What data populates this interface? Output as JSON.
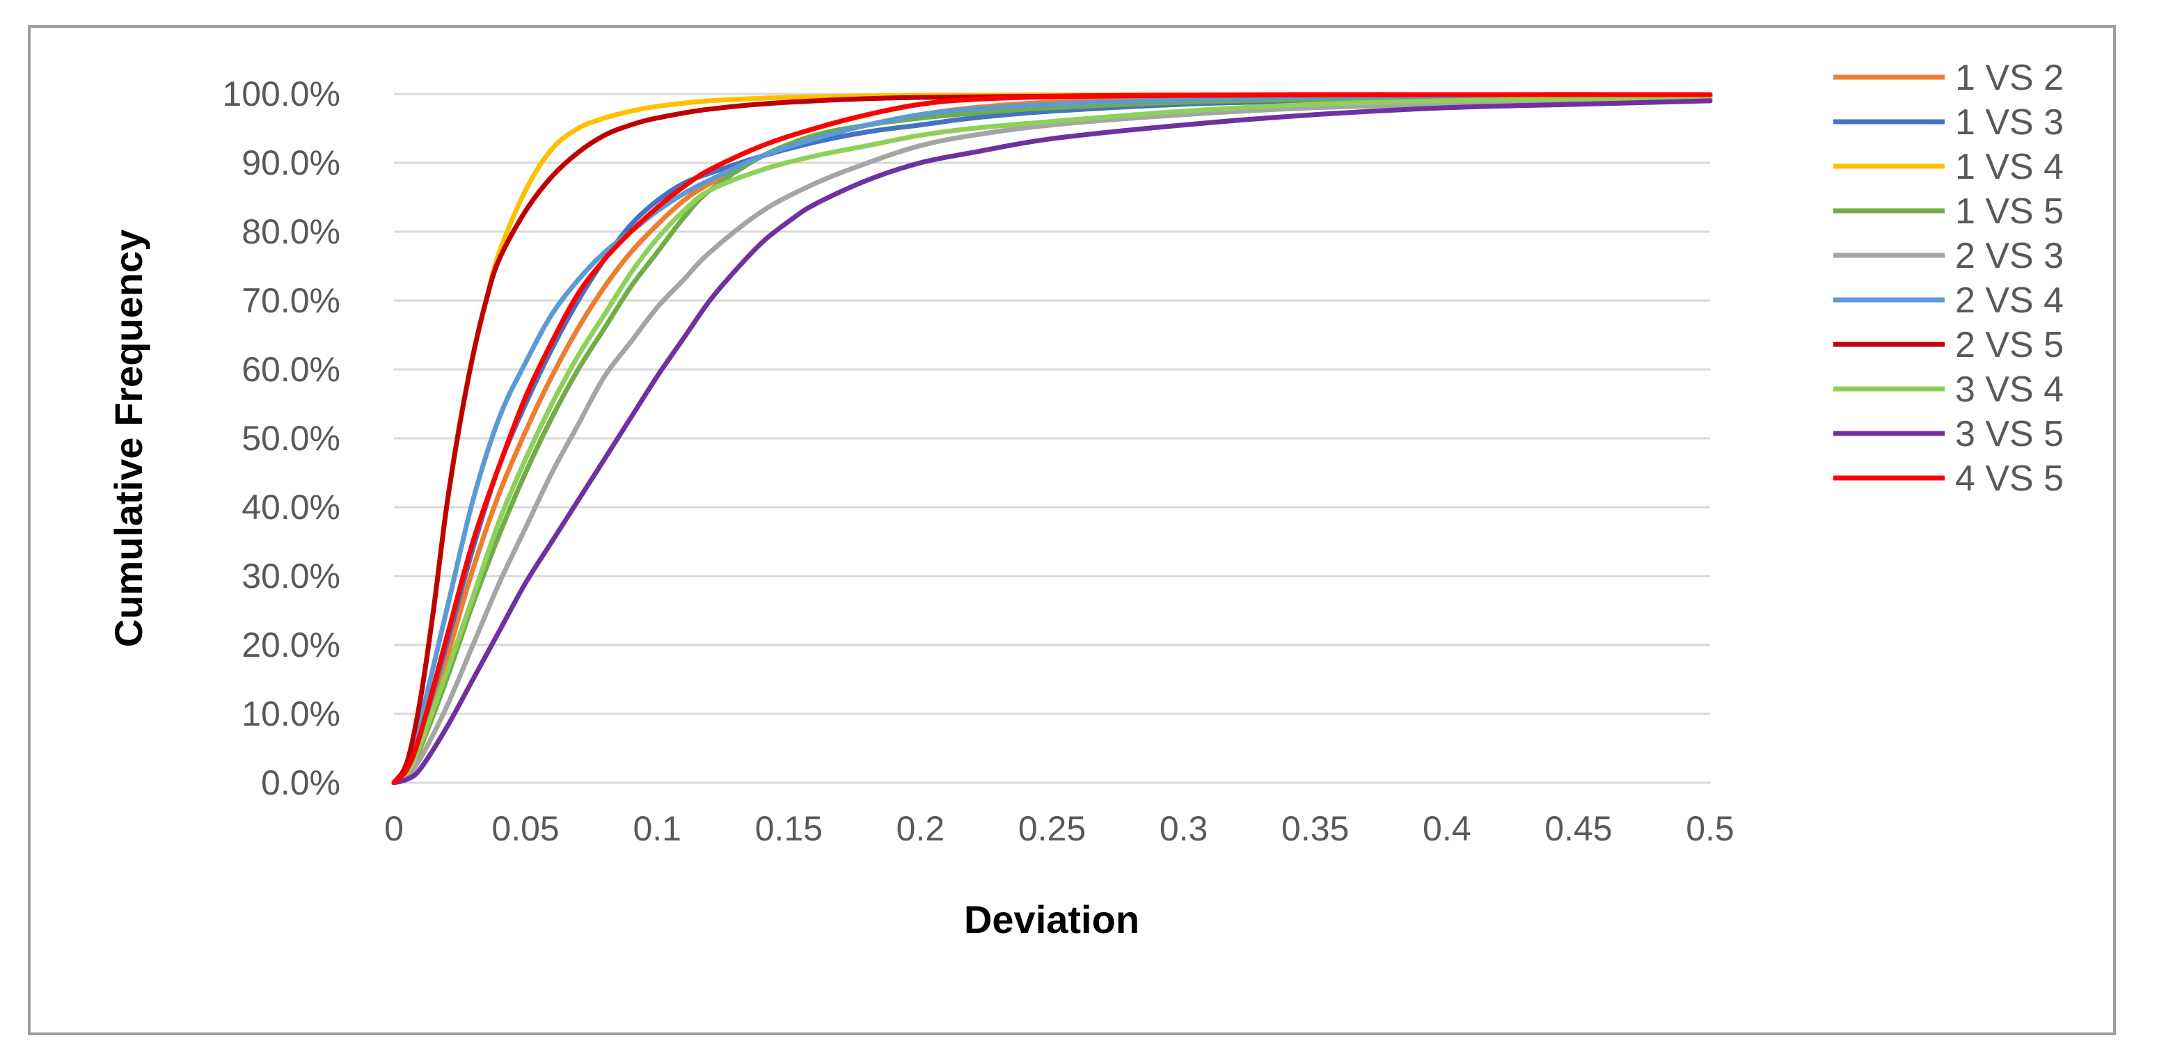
{
  "chart_data": {
    "type": "line",
    "title": "",
    "xlabel": "Deviation",
    "ylabel": "Cumulative Frequency",
    "xlim": [
      0,
      0.5
    ],
    "ylim": [
      0,
      1
    ],
    "x_ticks": [
      0,
      0.05,
      0.1,
      0.15,
      0.2,
      0.25,
      0.3,
      0.35,
      0.4,
      0.45,
      0.5
    ],
    "x_tick_labels": [
      "0",
      "0.05",
      "0.1",
      "0.15",
      "0.2",
      "0.25",
      "0.3",
      "0.35",
      "0.4",
      "0.45",
      "0.5"
    ],
    "y_ticks": [
      0,
      0.1,
      0.2,
      0.3,
      0.4,
      0.5,
      0.6,
      0.7,
      0.8,
      0.9,
      1.0
    ],
    "y_tick_labels": [
      "0.0%",
      "10.0%",
      "20.0%",
      "30.0%",
      "40.0%",
      "50.0%",
      "60.0%",
      "70.0%",
      "80.0%",
      "90.0%",
      "100.0%"
    ],
    "grid": true,
    "legend_position": "right",
    "series": [
      {
        "name": "1 VS 2",
        "color": "#ED7D31",
        "x": [
          0,
          0.005,
          0.01,
          0.02,
          0.03,
          0.04,
          0.05,
          0.06,
          0.07,
          0.08,
          0.09,
          0.1,
          0.11,
          0.12,
          0.14,
          0.16,
          0.18,
          0.2,
          0.22,
          0.25,
          0.3,
          0.35,
          0.4,
          0.45,
          0.5
        ],
        "y": [
          0,
          0.02,
          0.06,
          0.18,
          0.31,
          0.42,
          0.51,
          0.59,
          0.66,
          0.72,
          0.77,
          0.81,
          0.845,
          0.87,
          0.91,
          0.935,
          0.955,
          0.97,
          0.98,
          0.988,
          0.993,
          0.995,
          0.996,
          0.997,
          0.998
        ]
      },
      {
        "name": "1 VS 3",
        "color": "#4472C4",
        "x": [
          0,
          0.005,
          0.01,
          0.02,
          0.03,
          0.04,
          0.05,
          0.06,
          0.07,
          0.08,
          0.09,
          0.1,
          0.11,
          0.12,
          0.14,
          0.16,
          0.18,
          0.2,
          0.22,
          0.25,
          0.3,
          0.35,
          0.4,
          0.45,
          0.5
        ],
        "y": [
          0,
          0.02,
          0.07,
          0.2,
          0.34,
          0.46,
          0.55,
          0.63,
          0.7,
          0.76,
          0.81,
          0.845,
          0.87,
          0.885,
          0.91,
          0.93,
          0.945,
          0.955,
          0.965,
          0.975,
          0.985,
          0.99,
          0.993,
          0.995,
          0.997
        ]
      },
      {
        "name": "1 VS 4",
        "color": "#FFC000",
        "x": [
          0,
          0.005,
          0.01,
          0.015,
          0.02,
          0.025,
          0.03,
          0.035,
          0.04,
          0.05,
          0.06,
          0.07,
          0.08,
          0.09,
          0.1,
          0.12,
          0.15,
          0.2,
          0.3,
          0.4,
          0.5
        ],
        "y": [
          0,
          0.03,
          0.12,
          0.25,
          0.4,
          0.52,
          0.62,
          0.7,
          0.77,
          0.86,
          0.92,
          0.95,
          0.965,
          0.975,
          0.982,
          0.99,
          0.995,
          0.998,
          0.999,
          0.999,
          0.999
        ]
      },
      {
        "name": "1 VS 5",
        "color": "#70AD47",
        "x": [
          0,
          0.005,
          0.01,
          0.02,
          0.03,
          0.04,
          0.05,
          0.06,
          0.07,
          0.08,
          0.09,
          0.1,
          0.11,
          0.12,
          0.14,
          0.16,
          0.18,
          0.2,
          0.22,
          0.25,
          0.3,
          0.35,
          0.4,
          0.45,
          0.5
        ],
        "y": [
          0,
          0.015,
          0.05,
          0.15,
          0.26,
          0.36,
          0.45,
          0.53,
          0.6,
          0.66,
          0.72,
          0.77,
          0.82,
          0.86,
          0.91,
          0.94,
          0.955,
          0.965,
          0.972,
          0.98,
          0.988,
          0.992,
          0.994,
          0.996,
          0.997
        ]
      },
      {
        "name": "2 VS 3",
        "color": "#A5A5A5",
        "x": [
          0,
          0.005,
          0.01,
          0.02,
          0.03,
          0.04,
          0.05,
          0.06,
          0.07,
          0.08,
          0.09,
          0.1,
          0.11,
          0.12,
          0.14,
          0.16,
          0.18,
          0.2,
          0.22,
          0.25,
          0.3,
          0.35,
          0.4,
          0.45,
          0.5
        ],
        "y": [
          0,
          0.01,
          0.035,
          0.11,
          0.2,
          0.29,
          0.37,
          0.45,
          0.52,
          0.59,
          0.64,
          0.69,
          0.73,
          0.77,
          0.83,
          0.87,
          0.9,
          0.925,
          0.94,
          0.955,
          0.97,
          0.98,
          0.985,
          0.99,
          0.993
        ]
      },
      {
        "name": "2 VS 4",
        "color": "#5B9BD5",
        "x": [
          0,
          0.005,
          0.01,
          0.02,
          0.03,
          0.04,
          0.05,
          0.06,
          0.07,
          0.08,
          0.09,
          0.1,
          0.11,
          0.12,
          0.14,
          0.16,
          0.18,
          0.2,
          0.22,
          0.25,
          0.3,
          0.35,
          0.4,
          0.45,
          0.5
        ],
        "y": [
          0,
          0.025,
          0.09,
          0.25,
          0.41,
          0.53,
          0.61,
          0.68,
          0.73,
          0.77,
          0.8,
          0.83,
          0.855,
          0.875,
          0.91,
          0.935,
          0.955,
          0.97,
          0.978,
          0.985,
          0.992,
          0.995,
          0.997,
          0.998,
          0.998
        ]
      },
      {
        "name": "2 VS 5",
        "color": "#C00000",
        "x": [
          0,
          0.005,
          0.01,
          0.015,
          0.02,
          0.025,
          0.03,
          0.035,
          0.04,
          0.05,
          0.06,
          0.07,
          0.08,
          0.09,
          0.1,
          0.12,
          0.15,
          0.2,
          0.3,
          0.4,
          0.5
        ],
        "y": [
          0,
          0.03,
          0.12,
          0.25,
          0.4,
          0.52,
          0.62,
          0.7,
          0.76,
          0.83,
          0.88,
          0.915,
          0.94,
          0.955,
          0.965,
          0.978,
          0.988,
          0.995,
          0.998,
          0.999,
          0.999
        ]
      },
      {
        "name": "3 VS 4",
        "color": "#8ED15A",
        "x": [
          0,
          0.005,
          0.01,
          0.02,
          0.03,
          0.04,
          0.05,
          0.06,
          0.07,
          0.08,
          0.09,
          0.1,
          0.11,
          0.12,
          0.14,
          0.16,
          0.18,
          0.2,
          0.22,
          0.25,
          0.3,
          0.35,
          0.4,
          0.45,
          0.5
        ],
        "y": [
          0,
          0.015,
          0.055,
          0.16,
          0.27,
          0.38,
          0.47,
          0.55,
          0.62,
          0.68,
          0.74,
          0.79,
          0.83,
          0.86,
          0.89,
          0.91,
          0.925,
          0.94,
          0.95,
          0.96,
          0.975,
          0.985,
          0.99,
          0.993,
          0.995
        ]
      },
      {
        "name": "3 VS 5",
        "color": "#7030A0",
        "x": [
          0,
          0.005,
          0.01,
          0.02,
          0.03,
          0.04,
          0.05,
          0.06,
          0.07,
          0.08,
          0.09,
          0.1,
          0.11,
          0.12,
          0.13,
          0.14,
          0.15,
          0.16,
          0.18,
          0.2,
          0.22,
          0.25,
          0.3,
          0.35,
          0.4,
          0.45,
          0.5
        ],
        "y": [
          0,
          0.005,
          0.02,
          0.08,
          0.15,
          0.22,
          0.29,
          0.35,
          0.41,
          0.47,
          0.53,
          0.59,
          0.645,
          0.7,
          0.745,
          0.785,
          0.815,
          0.84,
          0.875,
          0.9,
          0.915,
          0.935,
          0.955,
          0.97,
          0.98,
          0.985,
          0.99
        ]
      },
      {
        "name": "4 VS 5",
        "color": "#FF0000",
        "x": [
          0,
          0.005,
          0.01,
          0.02,
          0.03,
          0.04,
          0.05,
          0.06,
          0.07,
          0.08,
          0.09,
          0.1,
          0.11,
          0.12,
          0.14,
          0.16,
          0.18,
          0.2,
          0.22,
          0.25,
          0.3,
          0.35,
          0.4,
          0.45,
          0.5
        ],
        "y": [
          0,
          0.02,
          0.07,
          0.21,
          0.35,
          0.46,
          0.56,
          0.64,
          0.71,
          0.76,
          0.8,
          0.835,
          0.865,
          0.89,
          0.925,
          0.95,
          0.97,
          0.985,
          0.992,
          0.996,
          0.998,
          0.999,
          0.999,
          0.999,
          0.999
        ]
      }
    ]
  }
}
